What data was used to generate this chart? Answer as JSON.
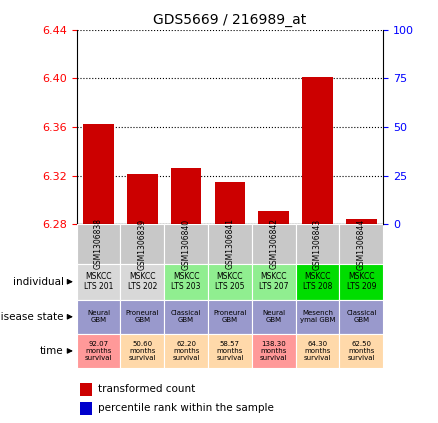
{
  "title": "GDS5669 / 216989_at",
  "samples": [
    "GSM1306838",
    "GSM1306839",
    "GSM1306840",
    "GSM1306841",
    "GSM1306842",
    "GSM1306843",
    "GSM1306844"
  ],
  "transformed_count": [
    6.362,
    6.321,
    6.326,
    6.315,
    6.291,
    6.401,
    6.284
  ],
  "percentile_rank": [
    2,
    2,
    2,
    2,
    1,
    2,
    1
  ],
  "ylim_left": [
    6.28,
    6.44
  ],
  "yticks_left": [
    6.28,
    6.32,
    6.36,
    6.4,
    6.44
  ],
  "ylim_right": [
    0,
    100
  ],
  "yticks_right": [
    0,
    25,
    50,
    75,
    100
  ],
  "bar_bottom": 6.28,
  "individual_labels": [
    "MSKCC\nLTS 201",
    "MSKCC\nLTS 202",
    "MSKCC\nLTS 203",
    "MSKCC\nLTS 205",
    "MSKCC\nLTS 207",
    "MSKCC\nLTS 208",
    "MSKCC\nLTS 209"
  ],
  "individual_colors": [
    "#d8d8d8",
    "#d8d8d8",
    "#90ee90",
    "#90ee90",
    "#90ee90",
    "#00dd00",
    "#00dd00"
  ],
  "disease_labels": [
    "Neural\nGBM",
    "Proneural\nGBM",
    "Classical\nGBM",
    "Proneural\nGBM",
    "Neural\nGBM",
    "Mesench\nymal GBM",
    "Classical\nGBM"
  ],
  "disease_color": "#9999cc",
  "time_labels": [
    "92.07\nmonths\nsurvival",
    "50.60\nmonths\nsurvival",
    "62.20\nmonths\nsurvival",
    "58.57\nmonths\nsurvival",
    "138.30\nmonths\nsurvival",
    "64.30\nmonths\nsurvival",
    "62.50\nmonths\nsurvival"
  ],
  "time_colors": [
    "#ff9999",
    "#ffd9aa",
    "#ffd9aa",
    "#ffd9aa",
    "#ff9999",
    "#ffd9aa",
    "#ffd9aa"
  ],
  "bar_color_red": "#cc0000",
  "bar_color_blue": "#0000cc",
  "legend_red": "transformed count",
  "legend_blue": "percentile rank within the sample",
  "sample_header_color": "#c8c8c8"
}
